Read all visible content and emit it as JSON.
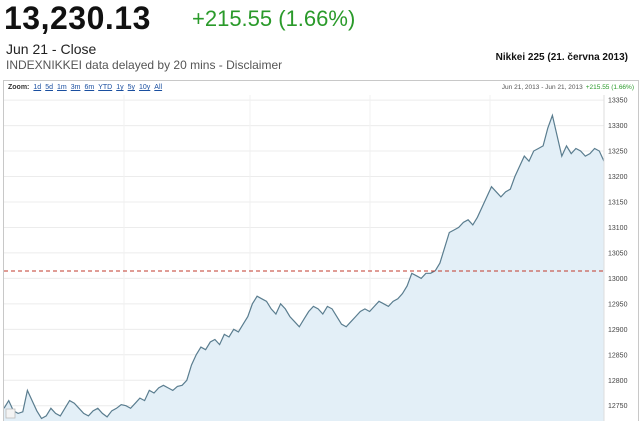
{
  "quote": {
    "price": "13,230.13",
    "change": "+215.55 (1.66%)",
    "date_label": "Jun 21 - Close",
    "delay_text": "INDEXNIKKEI data delayed by 20 mins - ",
    "disclaimer_link": "Disclaimer"
  },
  "chart_header": {
    "title": "Nikkei 225 (21. června 2013)",
    "zoom_label": "Zoom:",
    "zoom_options": [
      "1d",
      "5d",
      "1m",
      "3m",
      "6m",
      "YTD",
      "1y",
      "5y",
      "10y",
      "All"
    ],
    "range_text": "Jun 21, 2013 - Jun 21, 2013",
    "range_change": "+215.55 (1.66%)"
  },
  "colors": {
    "up": "#2a9a2a",
    "line": "#5a7d8f",
    "area": "#e3eff7",
    "prev_close": "#c0392b"
  },
  "chart_data": {
    "type": "area",
    "title": "Nikkei 225 (21. června 2013)",
    "xlabel": "",
    "ylabel": "",
    "ylim": [
      12720,
      13360
    ],
    "yticks": [
      12750,
      12800,
      12850,
      12900,
      12950,
      13000,
      13050,
      13100,
      13150,
      13200,
      13250,
      13300,
      13350
    ],
    "previous_close": 13014.58,
    "grid": true,
    "y_axis_side": "right",
    "series": [
      {
        "values": [
          12745,
          12760,
          12740,
          12735,
          12738,
          12780,
          12760,
          12740,
          12725,
          12730,
          12745,
          12735,
          12730,
          12745,
          12760,
          12755,
          12745,
          12735,
          12730,
          12740,
          12745,
          12735,
          12728,
          12740,
          12745,
          12752,
          12750,
          12745,
          12755,
          12765,
          12760,
          12780,
          12775,
          12785,
          12790,
          12785,
          12780,
          12788,
          12790,
          12800,
          12830,
          12850,
          12865,
          12860,
          12875,
          12880,
          12870,
          12890,
          12885,
          12900,
          12895,
          12910,
          12925,
          12950,
          12965,
          12960,
          12955,
          12940,
          12930,
          12950,
          12940,
          12925,
          12915,
          12905,
          12920,
          12935,
          12945,
          12940,
          12930,
          12945,
          12940,
          12925,
          12910,
          12905,
          12915,
          12925,
          12935,
          12940,
          12935,
          12945,
          12955,
          12950,
          12945,
          12955,
          12960,
          12970,
          12985,
          13010,
          13005,
          13000,
          13010,
          13010,
          13015,
          13030,
          13060,
          13090,
          13095,
          13100,
          13110,
          13115,
          13105,
          13120,
          13140,
          13160,
          13180,
          13170,
          13160,
          13170,
          13175,
          13200,
          13220,
          13240,
          13230,
          13250,
          13255,
          13260,
          13295,
          13320,
          13280,
          13240,
          13260,
          13245,
          13255,
          13250,
          13240,
          13245,
          13255,
          13250,
          13230
        ]
      }
    ]
  }
}
